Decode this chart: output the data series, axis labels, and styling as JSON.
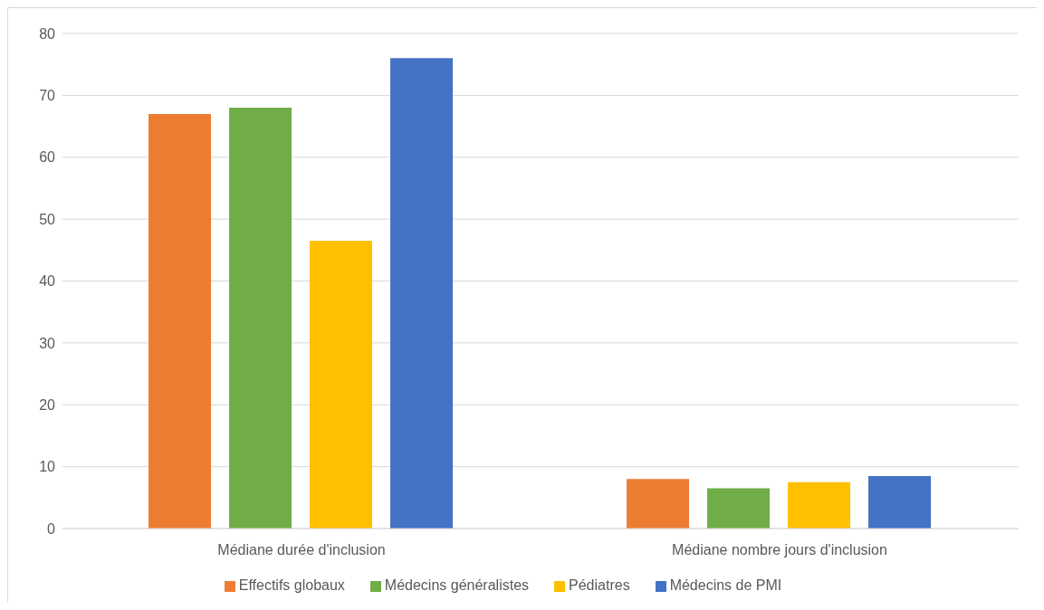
{
  "chart_data": {
    "type": "bar",
    "categories": [
      "Médiane durée d'inclusion",
      "Médiane nombre jours d'inclusion"
    ],
    "series": [
      {
        "name": "Effectifs globaux",
        "color": "#ed7d31",
        "values": [
          67,
          8
        ]
      },
      {
        "name": "Médecins généralistes",
        "color": "#70ad47",
        "values": [
          68,
          6.5
        ]
      },
      {
        "name": "Pédiatres",
        "color": "#ffc000",
        "values": [
          46.5,
          7.5
        ]
      },
      {
        "name": "Médecins de PMI",
        "color": "#4472c4",
        "values": [
          76,
          8.5
        ]
      }
    ],
    "ylim": [
      0,
      80
    ],
    "yticks": [
      0,
      10,
      20,
      30,
      40,
      50,
      60,
      70,
      80
    ],
    "grid": "y",
    "legend": "bottom"
  }
}
